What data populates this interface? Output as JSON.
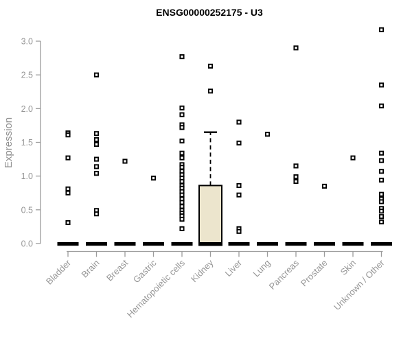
{
  "chart": {
    "title": "ENSG00000252175 - U3",
    "y_axis_label": "Expression"
  },
  "chart_data": {
    "type": "boxplot",
    "title": "ENSG00000252175 - U3",
    "xlabel": "",
    "ylabel": "Expression",
    "ylim": [
      0,
      3.2
    ],
    "yticks": [
      0,
      0.5,
      1,
      1.5,
      2,
      2.5,
      3
    ],
    "ytick_labels": [
      "0.0",
      "0.5",
      "1.0",
      "1.5",
      "2.0",
      "2.5",
      "3.0"
    ],
    "grid": false,
    "legend": "none",
    "categories": [
      "Bladder",
      "Brain",
      "Breast",
      "Gastric",
      "Hematopoietic cells",
      "Kidney",
      "Liver",
      "Lung",
      "Pancreas",
      "Prostate",
      "Skin",
      "Unknown / Other"
    ],
    "boxes": [
      {
        "category": "Bladder",
        "q1": 0,
        "median": 0,
        "q3": 0,
        "whisker_high": 0
      },
      {
        "category": "Brain",
        "q1": 0,
        "median": 0,
        "q3": 0,
        "whisker_high": 0
      },
      {
        "category": "Breast",
        "q1": 0,
        "median": 0,
        "q3": 0,
        "whisker_high": 0
      },
      {
        "category": "Gastric",
        "q1": 0,
        "median": 0,
        "q3": 0,
        "whisker_high": 0
      },
      {
        "category": "Hematopoietic cells",
        "q1": 0,
        "median": 0,
        "q3": 0,
        "whisker_high": 0
      },
      {
        "category": "Kidney",
        "q1": 0,
        "median": 0,
        "q3": 0.86,
        "whisker_high": 1.65
      },
      {
        "category": "Liver",
        "q1": 0,
        "median": 0,
        "q3": 0,
        "whisker_high": 0
      },
      {
        "category": "Lung",
        "q1": 0,
        "median": 0,
        "q3": 0,
        "whisker_high": 0
      },
      {
        "category": "Pancreas",
        "q1": 0,
        "median": 0,
        "q3": 0,
        "whisker_high": 0
      },
      {
        "category": "Prostate",
        "q1": 0,
        "median": 0,
        "q3": 0,
        "whisker_high": 0
      },
      {
        "category": "Skin",
        "q1": 0,
        "median": 0,
        "q3": 0,
        "whisker_high": 0
      },
      {
        "category": "Unknown / Other",
        "q1": 0,
        "median": 0,
        "q3": 0,
        "whisker_high": 0
      }
    ],
    "outlier_points": [
      [
        1.64,
        1.61,
        1.27,
        0.81,
        0.75,
        0.31
      ],
      [
        2.5,
        1.63,
        1.54,
        1.47,
        1.25,
        1.14,
        1.04,
        0.49,
        0.44
      ],
      [
        1.22
      ],
      [
        0.97
      ],
      [
        2.77,
        2.01,
        1.91,
        1.76,
        1.72,
        1.52,
        1.34,
        1.27,
        1.17,
        1.13,
        1.07,
        1.02,
        0.97,
        0.92,
        0.86,
        0.82,
        0.77,
        0.72,
        0.66,
        0.61,
        0.55,
        0.49,
        0.45,
        0.41,
        0.36,
        0.22
      ],
      [
        2.63,
        2.26
      ],
      [
        1.8,
        1.49,
        0.86,
        0.72,
        0.22,
        0.18
      ],
      [
        1.62
      ],
      [
        2.9,
        1.15,
        0.99,
        0.92
      ],
      [
        0.85
      ],
      [
        1.27
      ],
      [
        3.17,
        2.35,
        2.04,
        1.34,
        1.23,
        1.07,
        0.94,
        0.73,
        0.66,
        0.62,
        0.52,
        0.48,
        0.4,
        0.32
      ]
    ],
    "colors": {
      "box_fill": "#ece5cd",
      "box_stroke": "#000000",
      "flat_bar": "#000000",
      "point_stroke": "#000000",
      "point_fill": "#ffffff",
      "axis_line": "#9c9c9c",
      "tick_text": "#969696",
      "title_text": "#000000"
    }
  }
}
